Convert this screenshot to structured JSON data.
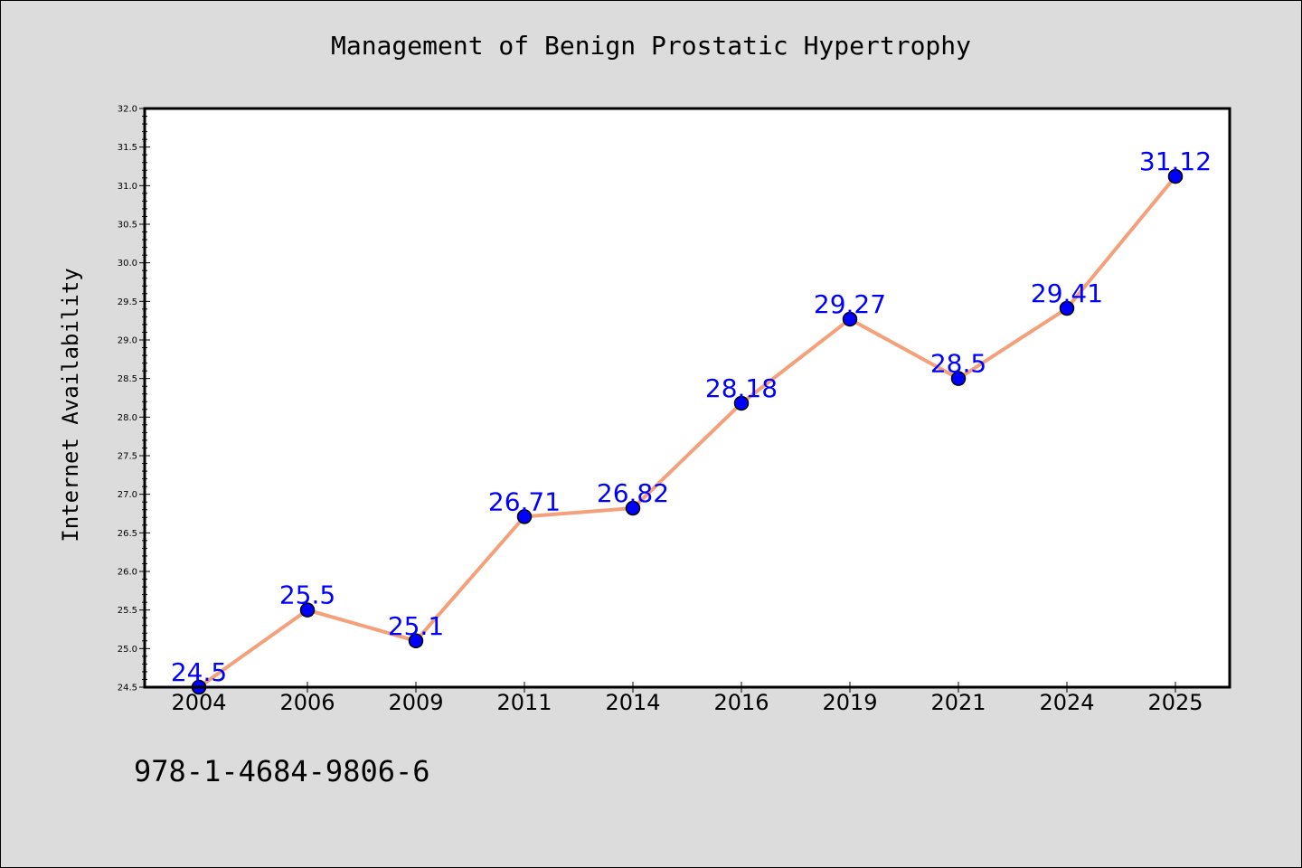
{
  "chart_data": {
    "type": "line",
    "title": "Management of Benign Prostatic Hypertrophy",
    "xlabel": "",
    "ylabel": "Internet Availability",
    "categories": [
      "2004",
      "2006",
      "2009",
      "2011",
      "2014",
      "2016",
      "2019",
      "2021",
      "2024",
      "2025"
    ],
    "values": [
      24.5,
      25.5,
      25.1,
      26.71,
      26.82,
      28.18,
      29.27,
      28.5,
      29.41,
      31.12
    ],
    "data_labels": [
      "24.5",
      "25.5",
      "25.1",
      "26.71",
      "26.82",
      "28.18",
      "29.27",
      "28.5",
      "29.41",
      "31.12"
    ],
    "ylim": [
      24.5,
      32.0
    ],
    "yticks": [
      "24.5",
      "25.0",
      "25.5",
      "26.0",
      "26.5",
      "27.0",
      "27.5",
      "28.0",
      "28.5",
      "29.0",
      "29.5",
      "30.0",
      "30.5",
      "31.0",
      "31.5",
      "32.0"
    ],
    "grid": false,
    "colors": {
      "line": "#f4a07a",
      "marker": "#0000ff",
      "label": "#0000ff",
      "plot_background": "#ffffff",
      "figure_background": "#dcdcdc"
    }
  },
  "footer_text": "978-1-4684-9806-6"
}
